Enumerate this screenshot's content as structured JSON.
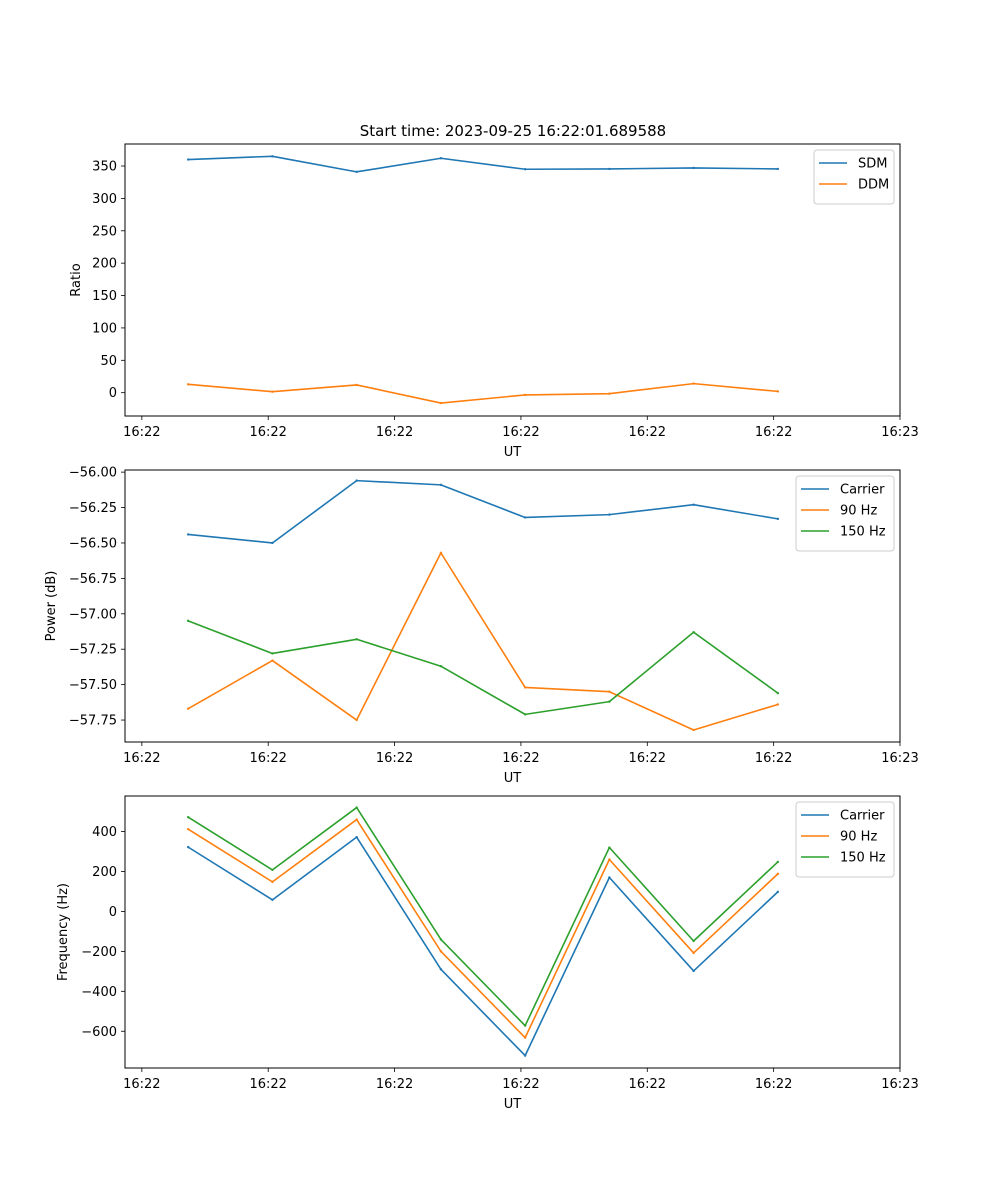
{
  "figure": {
    "title": "Start time: 2023-09-25 16:22:01.689588"
  },
  "chart_data": [
    {
      "type": "line",
      "xlabel": "UT",
      "ylabel": "Ratio",
      "x": [
        1.0,
        2.0,
        3.0,
        4.0,
        5.0,
        6.0,
        7.0,
        8.0
      ],
      "xlim": [
        0.25,
        9.45
      ],
      "xticks": [
        0.45,
        1.95,
        3.45,
        4.95,
        6.45,
        7.95,
        9.45
      ],
      "xticklabels": [
        "16:22",
        "16:22",
        "16:22",
        "16:22",
        "16:22",
        "16:22",
        "16:23"
      ],
      "ylim": [
        -36,
        384
      ],
      "yticks": [
        0,
        50,
        100,
        150,
        200,
        250,
        300,
        350
      ],
      "yticklabels": [
        "0",
        "50",
        "100",
        "150",
        "200",
        "250",
        "300",
        "350"
      ],
      "legend_loc": "upper right",
      "series": [
        {
          "name": "SDM",
          "color": "#1f77b4",
          "values": [
            360,
            365,
            341,
            362,
            345,
            345.5,
            347,
            345.5
          ]
        },
        {
          "name": "DDM",
          "color": "#ff7f0e",
          "values": [
            13,
            1.5,
            12,
            -16,
            -3.5,
            -1.5,
            14,
            2
          ]
        }
      ]
    },
    {
      "type": "line",
      "xlabel": "UT",
      "ylabel": "Power (dB)",
      "x": [
        1.0,
        2.0,
        3.0,
        4.0,
        5.0,
        6.0,
        7.0,
        8.0
      ],
      "xlim": [
        0.25,
        9.45
      ],
      "xticks": [
        0.45,
        1.95,
        3.45,
        4.95,
        6.45,
        7.95,
        9.45
      ],
      "xticklabels": [
        "16:22",
        "16:22",
        "16:22",
        "16:22",
        "16:22",
        "16:22",
        "16:23"
      ],
      "ylim": [
        -57.905,
        -55.985
      ],
      "yticks": [
        -57.75,
        -57.5,
        -57.25,
        -57.0,
        -56.75,
        -56.5,
        -56.25,
        -56.0
      ],
      "yticklabels": [
        "−57.75",
        "−57.50",
        "−57.25",
        "−57.00",
        "−56.75",
        "−56.50",
        "−56.25",
        "−56.00"
      ],
      "legend_loc": "upper right",
      "series": [
        {
          "name": "Carrier",
          "color": "#1f77b4",
          "values": [
            -56.44,
            -56.5,
            -56.06,
            -56.09,
            -56.32,
            -56.3,
            -56.23,
            -56.33
          ]
        },
        {
          "name": "90 Hz",
          "color": "#ff7f0e",
          "values": [
            -57.67,
            -57.33,
            -57.75,
            -56.57,
            -57.52,
            -57.55,
            -57.82,
            -57.64
          ]
        },
        {
          "name": "150 Hz",
          "color": "#2ca02c",
          "values": [
            -57.05,
            -57.28,
            -57.18,
            -57.37,
            -57.71,
            -57.62,
            -57.13,
            -57.56
          ]
        }
      ]
    },
    {
      "type": "line",
      "xlabel": "UT",
      "ylabel": "Frequency (Hz)",
      "x": [
        1.0,
        2.0,
        3.0,
        4.0,
        5.0,
        6.0,
        7.0,
        8.0
      ],
      "xlim": [
        0.25,
        9.45
      ],
      "xticks": [
        0.45,
        1.95,
        3.45,
        4.95,
        6.45,
        7.95,
        9.45
      ],
      "xticklabels": [
        "16:22",
        "16:22",
        "16:22",
        "16:22",
        "16:22",
        "16:22",
        "16:23"
      ],
      "ylim": [
        -784,
        578
      ],
      "yticks": [
        -600,
        -400,
        -200,
        0,
        200,
        400
      ],
      "yticklabels": [
        "−600",
        "−400",
        "−200",
        "0",
        "200",
        "400"
      ],
      "legend_loc": "upper right",
      "series": [
        {
          "name": "Carrier",
          "color": "#1f77b4",
          "values": [
            322,
            58,
            372,
            -290,
            -722,
            170,
            -298,
            98
          ]
        },
        {
          "name": "90 Hz",
          "color": "#ff7f0e",
          "values": [
            412,
            148,
            460,
            -200,
            -632,
            260,
            -208,
            188
          ]
        },
        {
          "name": "150 Hz",
          "color": "#2ca02c",
          "values": [
            472,
            208,
            520,
            -140,
            -572,
            320,
            -148,
            248
          ]
        }
      ]
    }
  ]
}
